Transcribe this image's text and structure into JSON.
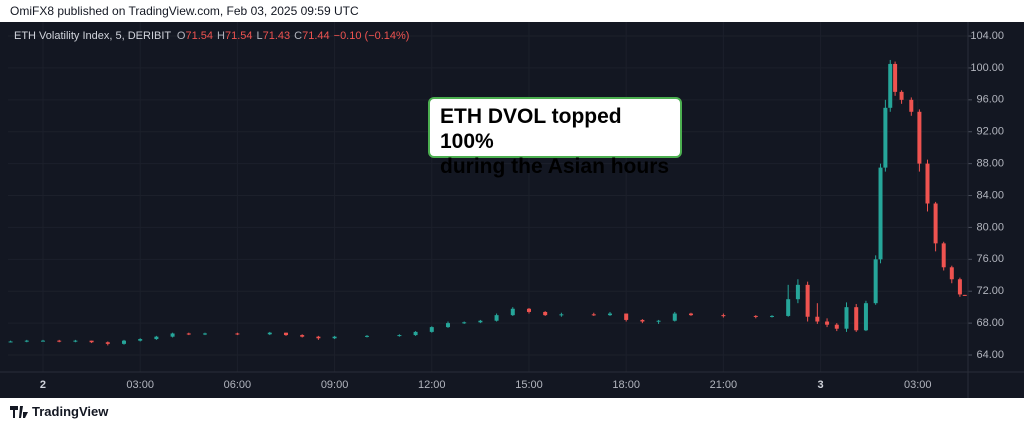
{
  "header": {
    "text": "OmiFX8 published on TradingView.com, Feb 03, 2025 09:59 UTC"
  },
  "footer": {
    "brand": "TradingView"
  },
  "chart_data": {
    "type": "candlestick",
    "title": "ETH Volatility Index, 5, DERIBIT",
    "legend": [
      {
        "label": "O",
        "value": "71.54"
      },
      {
        "label": "H",
        "value": "71.54"
      },
      {
        "label": "L",
        "value": "71.43"
      },
      {
        "label": "C",
        "value": "71.44"
      }
    ],
    "change": "−0.10 (−0.14%)",
    "annotation": [
      "ETH DVOL topped 100%",
      "during the Asian hours"
    ],
    "up_color": "#26a69a",
    "down_color": "#ef5350",
    "grid": true,
    "x": [
      -1,
      -0.5,
      0,
      0.5,
      1,
      1.5,
      2,
      2.5,
      3,
      3.5,
      4,
      4.5,
      5,
      6,
      7,
      7.5,
      8,
      8.5,
      9,
      10,
      11,
      11.5,
      12,
      12.5,
      13,
      13.5,
      14,
      14.5,
      15,
      15.5,
      16,
      17,
      17.5,
      18,
      18.5,
      19,
      19.5,
      20,
      21,
      22,
      22.5,
      23,
      23.3,
      23.6,
      23.9,
      24.2,
      24.5,
      24.8,
      25.1,
      25.4,
      25.7,
      25.85,
      26.0,
      26.15,
      26.3,
      26.5,
      26.8,
      27.05,
      27.3,
      27.55,
      27.8,
      28.05,
      28.3,
      28.45
    ],
    "open": [
      65.7,
      65.7,
      65.8,
      65.8,
      65.7,
      65.8,
      65.6,
      65.4,
      65.8,
      66.0,
      66.3,
      66.7,
      66.6,
      66.7,
      66.6,
      66.8,
      66.5,
      66.3,
      66.1,
      66.3,
      66.4,
      66.5,
      66.9,
      67.5,
      68.0,
      68.1,
      68.3,
      69.0,
      69.8,
      69.4,
      69.0,
      69.1,
      69.0,
      69.2,
      68.4,
      68.2,
      68.3,
      69.2,
      69.0,
      68.9,
      68.8,
      68.9,
      71.0,
      72.8,
      68.8,
      68.2,
      67.8,
      67.3,
      70.0,
      67.1,
      70.5,
      76.0,
      87.5,
      95.0,
      100.5,
      97.0,
      96.0,
      94.5,
      88.0,
      83.0,
      78.0,
      75.0,
      73.5,
      71.54
    ],
    "high": [
      65.8,
      65.9,
      65.9,
      65.9,
      65.9,
      65.8,
      65.7,
      65.9,
      66.1,
      66.4,
      66.8,
      66.8,
      66.8,
      66.8,
      66.9,
      66.8,
      66.6,
      66.4,
      66.4,
      66.5,
      66.6,
      67.0,
      67.6,
      68.2,
      68.2,
      68.4,
      69.2,
      70.0,
      69.9,
      69.5,
      69.3,
      69.3,
      69.4,
      69.2,
      68.5,
      68.4,
      69.4,
      69.3,
      69.2,
      69.0,
      69.0,
      72.8,
      73.5,
      73.2,
      70.5,
      68.6,
      68.0,
      70.6,
      70.4,
      70.8,
      76.5,
      88.0,
      96.0,
      101.0,
      100.8,
      97.2,
      96.3,
      94.8,
      88.5,
      83.2,
      78.2,
      75.2,
      73.7,
      71.54
    ],
    "low": [
      65.6,
      65.6,
      65.7,
      65.6,
      65.6,
      65.5,
      65.2,
      65.3,
      65.7,
      65.9,
      66.2,
      66.5,
      66.5,
      66.5,
      66.5,
      66.4,
      66.2,
      65.9,
      66.0,
      66.2,
      66.3,
      66.4,
      66.8,
      67.4,
      67.9,
      68.0,
      68.2,
      68.9,
      69.2,
      68.9,
      68.8,
      68.9,
      68.9,
      68.2,
      68.0,
      67.9,
      68.2,
      68.9,
      68.7,
      68.6,
      68.7,
      68.8,
      70.5,
      68.2,
      67.9,
      67.5,
      67.0,
      66.9,
      66.9,
      67.0,
      70.3,
      75.5,
      87.0,
      94.5,
      96.5,
      95.5,
      94.0,
      87.0,
      82.0,
      77.0,
      74.6,
      73.0,
      71.3,
      71.43
    ],
    "close": [
      65.7,
      65.8,
      65.8,
      65.7,
      65.8,
      65.6,
      65.4,
      65.8,
      66.0,
      66.3,
      66.7,
      66.6,
      66.7,
      66.6,
      66.8,
      66.5,
      66.3,
      66.1,
      66.3,
      66.4,
      66.5,
      66.9,
      67.5,
      68.0,
      68.1,
      68.3,
      69.0,
      69.8,
      69.4,
      69.0,
      69.1,
      69.0,
      69.2,
      68.4,
      68.2,
      68.3,
      69.2,
      69.0,
      68.9,
      68.8,
      68.9,
      71.0,
      72.8,
      68.8,
      68.2,
      67.8,
      67.3,
      70.0,
      67.1,
      70.5,
      76.0,
      87.5,
      95.0,
      100.5,
      97.0,
      96.0,
      94.5,
      88.0,
      83.0,
      78.0,
      75.0,
      73.5,
      71.6,
      71.44
    ],
    "xlim": [
      -1.08,
      28.55
    ],
    "xticks": [
      {
        "value": 0,
        "label": "2"
      },
      {
        "value": 3,
        "label": "03:00"
      },
      {
        "value": 6,
        "label": "06:00"
      },
      {
        "value": 9,
        "label": "09:00"
      },
      {
        "value": 12,
        "label": "12:00"
      },
      {
        "value": 15,
        "label": "15:00"
      },
      {
        "value": 18,
        "label": "18:00"
      },
      {
        "value": 21,
        "label": "21:00"
      },
      {
        "value": 24,
        "label": "3"
      },
      {
        "value": 27,
        "label": "03:00"
      }
    ],
    "ylim": [
      61.87,
      105.76
    ],
    "yticks": [
      {
        "value": 64,
        "label": "64.00"
      },
      {
        "value": 68,
        "label": "68.00"
      },
      {
        "value": 72,
        "label": "72.00"
      },
      {
        "value": 76,
        "label": "76.00"
      },
      {
        "value": 80,
        "label": "80.00"
      },
      {
        "value": 84,
        "label": "84.00"
      },
      {
        "value": 88,
        "label": "88.00"
      },
      {
        "value": 92,
        "label": "92.00"
      },
      {
        "value": 96,
        "label": "96.00"
      },
      {
        "value": 100,
        "label": "100.00"
      },
      {
        "value": 104,
        "label": "104.00"
      }
    ]
  }
}
